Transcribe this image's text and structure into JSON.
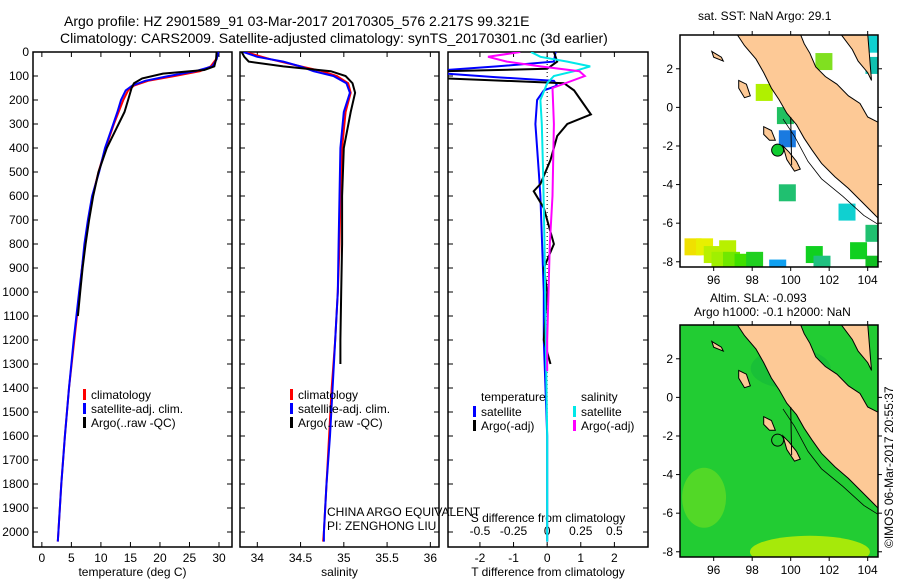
{
  "header": {
    "title_line1": "Argo profile: HZ 2901589_91 03-Mar-2017 20170305_576 2.217S 99.321E",
    "title_line2": "Climatology: CARS2009. Satellite-adjusted climatology: synTS_20170301.nc (3d earlier)"
  },
  "colors": {
    "climatology": "#ff0000",
    "satellite": "#0000ff",
    "argo": "#000000",
    "s_satellite": "#00e8e8",
    "s_argo": "#ff00ff",
    "land": "#fdc996",
    "ocean_sla": "#22cc33"
  },
  "chart_data": [
    {
      "type": "line",
      "name": "temperature",
      "xlabel": "temperature (deg C)",
      "ylabel": "depth",
      "xlim": [
        -1.5,
        32.2
      ],
      "ylim": [
        2060,
        0
      ],
      "xticks": [
        0,
        5,
        10,
        15,
        20,
        25,
        30
      ],
      "yticks": [
        0,
        100,
        200,
        300,
        400,
        500,
        600,
        700,
        800,
        900,
        1000,
        1100,
        1200,
        1300,
        1400,
        1500,
        1600,
        1700,
        1800,
        1900,
        2000
      ],
      "legend": [
        "climatology",
        "satellite-adj. clim.",
        "Argo(..raw -QC)"
      ],
      "series": [
        {
          "name": "climatology",
          "color": "#ff0000",
          "depth": [
            0,
            30,
            60,
            80,
            100,
            120,
            140,
            160,
            200,
            250,
            300,
            400,
            500,
            600,
            700,
            800,
            900,
            1000,
            1200,
            1400,
            1600,
            1800,
            2000,
            2040
          ],
          "values": [
            29.8,
            29.5,
            28.6,
            26.8,
            22.5,
            18,
            15.6,
            14.6,
            13.8,
            13,
            12.2,
            10.8,
            9.6,
            8.6,
            7.9,
            7.3,
            6.8,
            6.4,
            5.5,
            4.6,
            3.9,
            3.3,
            2.8,
            2.7
          ]
        },
        {
          "name": "satellite-adj. clim.",
          "color": "#0000ff",
          "depth": [
            0,
            30,
            60,
            80,
            100,
            120,
            140,
            160,
            200,
            250,
            300,
            400,
            500,
            600,
            700,
            800,
            900,
            1000,
            1200,
            1400,
            1600,
            1800,
            2000,
            2040
          ],
          "values": [
            29.9,
            29.6,
            28.9,
            26,
            21.5,
            17.5,
            15.3,
            14.2,
            13.4,
            12.8,
            12.1,
            10.7,
            9.7,
            8.5,
            7.8,
            7.2,
            6.8,
            6.3,
            5.4,
            4.6,
            3.9,
            3.3,
            2.8,
            2.7
          ]
        },
        {
          "name": "Argo(..raw -QC)",
          "color": "#000000",
          "depth": [
            0,
            30,
            60,
            75,
            90,
            110,
            130,
            150,
            200,
            250,
            300,
            400,
            500,
            600,
            700,
            800,
            900,
            1000,
            1100
          ],
          "values": [
            29.6,
            29.5,
            29.2,
            27.5,
            20.5,
            17,
            15.6,
            15.2,
            14.6,
            14,
            13,
            11,
            9.6,
            8.7,
            8,
            7.4,
            6.9,
            6.5,
            6.1
          ]
        }
      ]
    },
    {
      "type": "line",
      "name": "salinity",
      "xlabel": "salinity",
      "ylabel": "depth",
      "xlim": [
        33.8,
        36.1
      ],
      "ylim": [
        2060,
        0
      ],
      "xticks": [
        34,
        34.5,
        35,
        35.5,
        36
      ],
      "legend": [
        "climatology",
        "satellite-adj. clim.",
        "Argo(..raw -QC)"
      ],
      "series": [
        {
          "name": "climatology",
          "color": "#ff0000",
          "depth": [
            0,
            30,
            60,
            80,
            100,
            130,
            170,
            250,
            400,
            600,
            800,
            1000,
            1200,
            1400,
            1600,
            1800,
            2000,
            2040
          ],
          "values": [
            33.86,
            34.15,
            34.5,
            34.75,
            34.92,
            35.05,
            35.08,
            35.02,
            34.98,
            34.96,
            34.95,
            34.93,
            34.9,
            34.86,
            34.83,
            34.8,
            34.77,
            34.76
          ]
        },
        {
          "name": "satellite-adj. clim.",
          "color": "#0000ff",
          "depth": [
            0,
            20,
            40,
            60,
            80,
            100,
            130,
            170,
            250,
            400,
            600,
            800,
            1000,
            1200,
            1400,
            1600,
            1800,
            2000,
            2040
          ],
          "values": [
            33.84,
            34.0,
            34.3,
            34.5,
            34.65,
            34.88,
            35.03,
            35.07,
            35.0,
            34.96,
            34.95,
            34.94,
            34.93,
            34.9,
            34.87,
            34.84,
            34.8,
            34.77,
            34.77
          ]
        },
        {
          "name": "Argo(..raw -QC)",
          "color": "#000000",
          "depth": [
            0,
            20,
            40,
            60,
            80,
            100,
            130,
            170,
            250,
            400,
            600,
            800,
            1000,
            1200,
            1300
          ],
          "values": [
            33.82,
            33.85,
            33.9,
            34.3,
            34.85,
            35.02,
            35.1,
            35.13,
            35.08,
            35.0,
            34.98,
            34.98,
            34.97,
            34.96,
            34.96
          ]
        }
      ]
    },
    {
      "type": "line",
      "name": "difference",
      "xlabel": "T difference from climatology",
      "xlabel2": "S difference from climatology",
      "xlim": [
        -2.95,
        3.0
      ],
      "ylim": [
        2060,
        0
      ],
      "xticks": [
        -2,
        -1,
        0,
        1,
        2
      ],
      "xticks2": [
        -0.5,
        -0.25,
        0,
        0.25,
        0.5
      ],
      "legend_headers": [
        "temperature",
        "salinity"
      ],
      "legend": [
        "satellite",
        "Argo(-adj)",
        "satellite",
        "Argo(-adj)"
      ],
      "series": [
        {
          "name": "T satellite",
          "axis": "T",
          "color": "#0000ff",
          "depth": [
            0,
            40,
            60,
            75,
            90,
            105,
            120,
            140,
            160,
            200,
            300,
            400,
            500,
            600,
            800,
            1000,
            1200,
            1400,
            1600,
            1800,
            2000,
            2040
          ],
          "values": [
            0.25,
            0.2,
            -1.5,
            -3.0,
            -3.0,
            -1.5,
            0.2,
            0.3,
            -0.1,
            -0.3,
            -0.35,
            -0.3,
            -0.25,
            -0.2,
            -0.15,
            -0.1,
            -0.1,
            -0.05,
            0,
            0,
            0,
            0
          ]
        },
        {
          "name": "T Argo(-adj)",
          "axis": "T",
          "color": "#000000",
          "depth": [
            0,
            40,
            70,
            80,
            110,
            130,
            160,
            200,
            260,
            300,
            350,
            450,
            550,
            580,
            650,
            800,
            900,
            1000,
            1200,
            1300
          ],
          "values": [
            0.2,
            0.3,
            0,
            -3,
            -3,
            0.5,
            0.8,
            1.0,
            1.3,
            0.6,
            0.3,
            0.1,
            -0.2,
            -0.4,
            -0.1,
            0.2,
            -0.1,
            0,
            -0.1,
            0.1
          ]
        },
        {
          "name": "S satellite",
          "axis": "S",
          "color": "#00e8e8",
          "depth": [
            0,
            20,
            40,
            60,
            80,
            100,
            130,
            200,
            300,
            500,
            800,
            1200,
            1600,
            2000,
            2040
          ],
          "values": [
            -0.12,
            -0.05,
            0.15,
            0.32,
            0.2,
            0.05,
            0.0,
            -0.05,
            -0.04,
            -0.03,
            -0.02,
            -0.01,
            0,
            0,
            0
          ]
        },
        {
          "name": "S Argo(-adj)",
          "axis": "S",
          "color": "#ff00ff",
          "depth": [
            0,
            20,
            40,
            60,
            80,
            100,
            150,
            300,
            600,
            800,
            1000,
            1200,
            1330
          ],
          "values": [
            -0.2,
            -0.44,
            -0.3,
            -0.05,
            0.24,
            0.28,
            0.04,
            0.05,
            0.04,
            0.02,
            0.01,
            0,
            0
          ]
        }
      ]
    }
  ],
  "labels": {
    "pi_line1": "CHINA ARGO EQUIVALENT",
    "pi_line2": "PI: ZENGHONG LIU",
    "credit": "©IMOS 06-Mar-2017 20:55:37"
  },
  "map_sst": {
    "title": "sat. SST: NaN Argo: 29.1",
    "lon_ticks": [
      96,
      98,
      100,
      102,
      104
    ],
    "lat_ticks": [
      2,
      0,
      -2,
      -4,
      -6,
      -8
    ],
    "argo_position": {
      "lon": 99.321,
      "lat": -2.217,
      "color": "#10cc30"
    },
    "cells": [
      {
        "lon": 99.7,
        "lat": -0.4,
        "color": "#20c060"
      },
      {
        "lon": 99.8,
        "lat": -1.6,
        "color": "#1a7ae0"
      },
      {
        "lon": 99.8,
        "lat": -4.4,
        "color": "#20c070"
      },
      {
        "lon": 102.9,
        "lat": -5.4,
        "color": "#10d0d0"
      },
      {
        "lon": 98.6,
        "lat": 0.8,
        "color": "#b0f000"
      },
      {
        "lon": 101.7,
        "lat": 2.4,
        "color": "#80e020"
      },
      {
        "lon": 104.1,
        "lat": 3.3,
        "color": "#10d0d0"
      },
      {
        "lon": 104.3,
        "lat": 2.2,
        "color": "#10c0b0"
      },
      {
        "lon": 104.3,
        "lat": -6.5,
        "color": "#20c070"
      },
      {
        "lon": 103.5,
        "lat": -7.4,
        "color": "#10d020"
      },
      {
        "lon": 101.2,
        "lat": -7.6,
        "color": "#10d020"
      },
      {
        "lon": 101.6,
        "lat": -8.1,
        "color": "#20c080"
      },
      {
        "lon": 99.3,
        "lat": -8.3,
        "color": "#10a0f0"
      },
      {
        "lon": 94.9,
        "lat": -7.2,
        "color": "#f0e000"
      },
      {
        "lon": 95.5,
        "lat": -7.2,
        "color": "#e8f000"
      },
      {
        "lon": 95.9,
        "lat": -7.6,
        "color": "#b8f000"
      },
      {
        "lon": 96.7,
        "lat": -7.3,
        "color": "#b8f000"
      },
      {
        "lon": 96.3,
        "lat": -7.9,
        "color": "#a0f000"
      },
      {
        "lon": 96.9,
        "lat": -7.9,
        "color": "#70e800"
      },
      {
        "lon": 97.5,
        "lat": -8.0,
        "color": "#40e000"
      },
      {
        "lon": 98.1,
        "lat": -7.9,
        "color": "#20d020"
      },
      {
        "lon": 104.3,
        "lat": -8.1,
        "color": "#10c020"
      }
    ]
  },
  "map_sla": {
    "title_line1": "Altim. SLA: -0.093",
    "title_line2": "Argo h1000: -0.1 h2000: NaN",
    "lon_ticks": [
      96,
      98,
      100,
      102,
      104
    ],
    "lat_ticks": [
      2,
      0,
      -2,
      -4,
      -6,
      -8
    ]
  }
}
